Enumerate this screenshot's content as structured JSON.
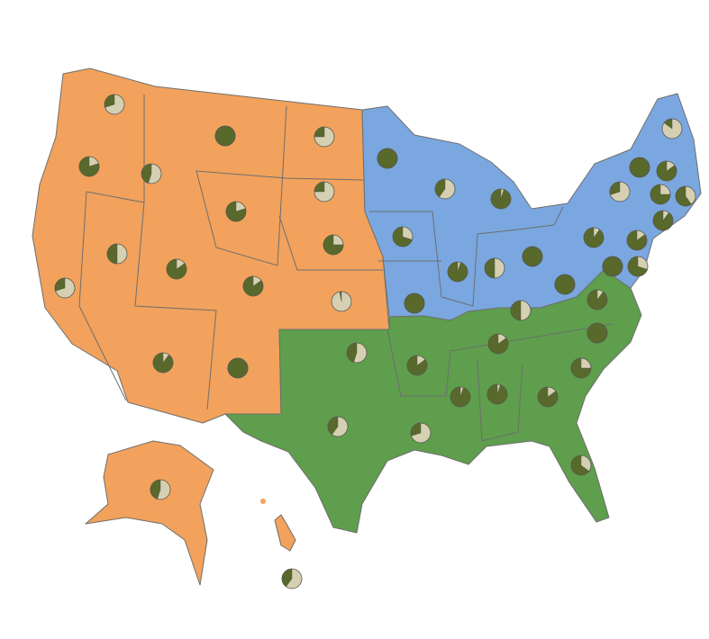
{
  "map": {
    "pie_colors": {
      "share": "#58692b",
      "rest": "#d6d0b2"
    },
    "shares": [
      30,
      80,
      45,
      100,
      25,
      25,
      80,
      75,
      3,
      50,
      85,
      85,
      30,
      90,
      100,
      45,
      40,
      100,
      40,
      95,
      70,
      95,
      50,
      100,
      100,
      90,
      30,
      15,
      100,
      85,
      75,
      60,
      90,
      85,
      70,
      100,
      100,
      50,
      90,
      85,
      100,
      45,
      85,
      75,
      40,
      30,
      95,
      95,
      85,
      65
    ]
  }
}
